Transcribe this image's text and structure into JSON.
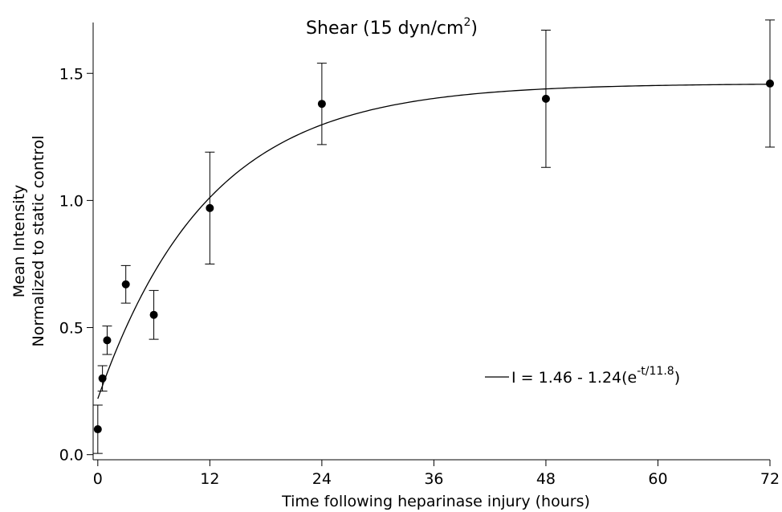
{
  "chart_data": {
    "type": "scatter",
    "title_parts": [
      "Shear (15 dyn/cm",
      "2",
      ")"
    ],
    "x_label": "Time following heparinase injury (hours)",
    "y_label": [
      "Mean Intensity",
      "Normalized to static control"
    ],
    "series": [
      {
        "color": "#000000",
        "x": [
          0,
          0.5,
          1,
          3,
          6,
          12,
          24,
          48,
          72
        ],
        "values": [
          0.1,
          0.3,
          0.45,
          0.67,
          0.55,
          0.97,
          1.38,
          1.4,
          1.46
        ],
        "errors": [
          0.095,
          0.05,
          0.056,
          0.074,
          0.096,
          0.22,
          0.16,
          0.27,
          0.25
        ]
      }
    ],
    "fit": {
      "a": 1.46,
      "b": 1.24,
      "tau": 11.8,
      "color": "#000000",
      "label_parts": [
        "I = 1.46 - 1.24(e",
        "-t/11.8",
        ")"
      ]
    },
    "xlim": [
      -0.5,
      72
    ],
    "ylim": [
      -0.02,
      1.7
    ],
    "xticks": [
      0,
      12,
      24,
      36,
      48,
      60,
      72
    ],
    "yticks": [
      {
        "value": 0,
        "label": "0.0"
      },
      {
        "value": 0.5,
        "label": "0.5"
      },
      {
        "value": 1.0,
        "label": "1.0"
      },
      {
        "value": 1.5,
        "label": "1.5"
      }
    ],
    "grid": false
  }
}
